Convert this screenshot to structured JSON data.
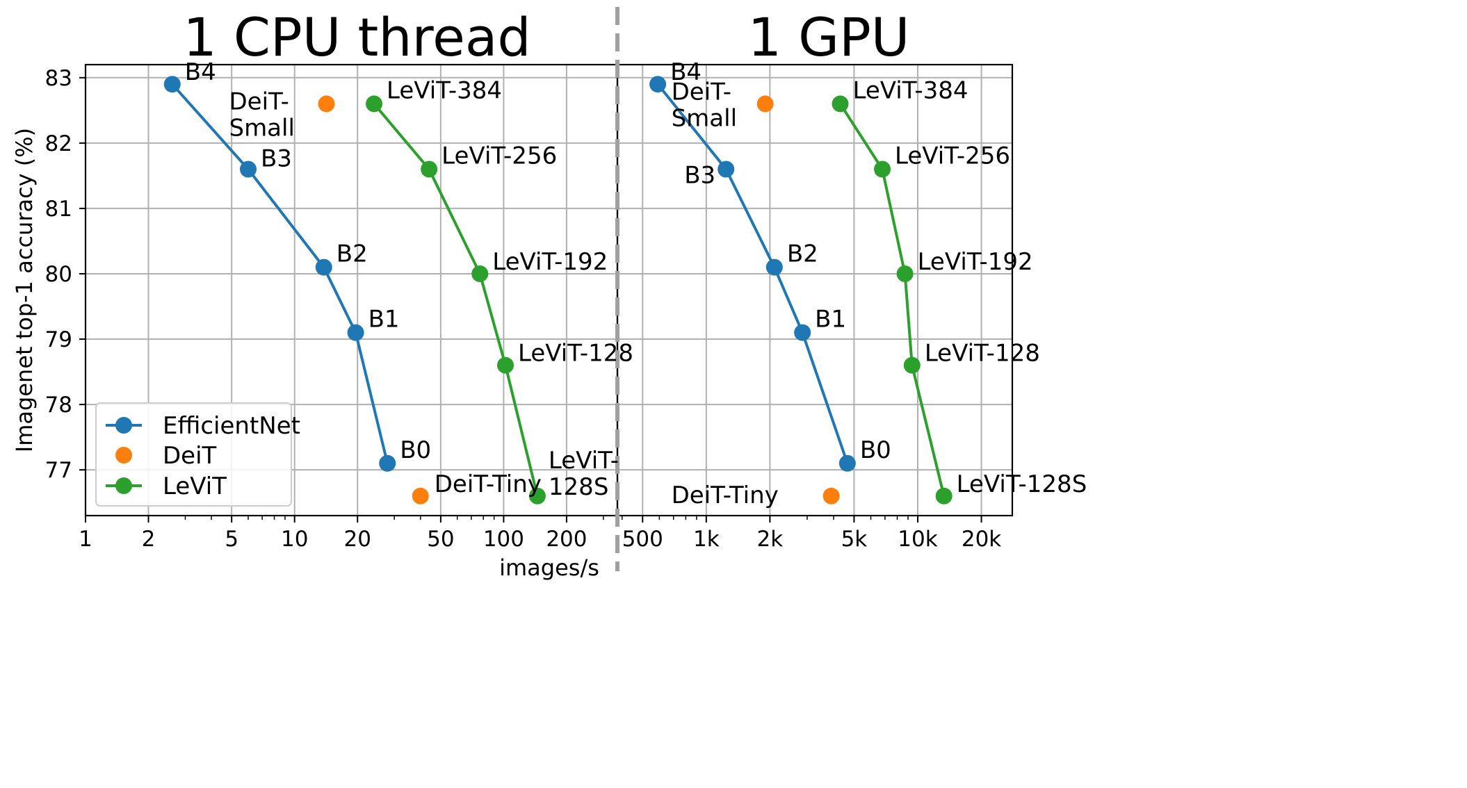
{
  "chart_data": {
    "type": "line",
    "ylabel": "Imagenet top-1 accuracy (%)",
    "xlabel": "images/s",
    "ylim": [
      76.3,
      83.2
    ],
    "yticks": [
      77,
      78,
      79,
      80,
      81,
      82,
      83
    ],
    "colors": {
      "EfficientNet": "#1f77b4",
      "DeiT": "#ff7f0e",
      "LeViT": "#2ca02c"
    },
    "legend": [
      "EfficientNet",
      "DeiT",
      "LeViT"
    ],
    "legend_position": "lower-left",
    "panels": [
      {
        "title": "1 CPU thread",
        "xscale": "log",
        "xlim": [
          1,
          350
        ],
        "xticks": [
          1,
          2,
          5,
          10,
          20,
          50,
          100,
          200
        ],
        "xtick_labels": [
          "1",
          "2",
          "5",
          "10",
          "20",
          "50",
          "100",
          "200"
        ],
        "series": [
          {
            "name": "EfficientNet",
            "connected": true,
            "points": [
              {
                "x": 2.6,
                "y": 82.9,
                "label": "B4"
              },
              {
                "x": 6.0,
                "y": 81.6,
                "label": "B3"
              },
              {
                "x": 13.8,
                "y": 80.1,
                "label": "B2"
              },
              {
                "x": 19.6,
                "y": 79.1,
                "label": "B1"
              },
              {
                "x": 27.8,
                "y": 77.1,
                "label": "B0"
              }
            ]
          },
          {
            "name": "DeiT",
            "connected": false,
            "points": [
              {
                "x": 14.2,
                "y": 82.6,
                "label": "DeiT-\nSmall"
              },
              {
                "x": 40.0,
                "y": 76.6,
                "label": "DeiT-Tiny"
              }
            ]
          },
          {
            "name": "LeViT",
            "connected": true,
            "points": [
              {
                "x": 24.0,
                "y": 82.6,
                "label": "LeViT-384"
              },
              {
                "x": 44.0,
                "y": 81.6,
                "label": "LeViT-256"
              },
              {
                "x": 77.0,
                "y": 80.0,
                "label": "LeViT-192"
              },
              {
                "x": 102.0,
                "y": 78.6,
                "label": "LeViT-128"
              },
              {
                "x": 145.0,
                "y": 76.6,
                "label": "LeViT-\n128S"
              }
            ]
          }
        ]
      },
      {
        "title": "1 GPU",
        "xscale": "log",
        "xlim": [
          380,
          28000
        ],
        "xticks": [
          500,
          1000,
          2000,
          5000,
          10000,
          20000
        ],
        "xtick_labels": [
          "500",
          "1k",
          "2k",
          "5k",
          "10k",
          "20k"
        ],
        "series": [
          {
            "name": "EfficientNet",
            "connected": true,
            "points": [
              {
                "x": 590,
                "y": 82.9,
                "label": "B4"
              },
              {
                "x": 1240,
                "y": 81.6,
                "label": "B3"
              },
              {
                "x": 2100,
                "y": 80.1,
                "label": "B2"
              },
              {
                "x": 2850,
                "y": 79.1,
                "label": "B1"
              },
              {
                "x": 4650,
                "y": 77.1,
                "label": "B0"
              }
            ]
          },
          {
            "name": "DeiT",
            "connected": false,
            "points": [
              {
                "x": 1900,
                "y": 82.6,
                "label": "DeiT-\nSmall"
              },
              {
                "x": 3900,
                "y": 76.6,
                "label": "DeiT-Tiny"
              }
            ]
          },
          {
            "name": "LeViT",
            "connected": true,
            "points": [
              {
                "x": 4300,
                "y": 82.6,
                "label": "LeViT-384"
              },
              {
                "x": 6800,
                "y": 81.6,
                "label": "LeViT-256"
              },
              {
                "x": 8700,
                "y": 80.0,
                "label": "LeViT-192"
              },
              {
                "x": 9400,
                "y": 78.6,
                "label": "LeViT-128"
              },
              {
                "x": 13300,
                "y": 76.6,
                "label": "LeViT-128S"
              }
            ]
          }
        ]
      }
    ]
  }
}
